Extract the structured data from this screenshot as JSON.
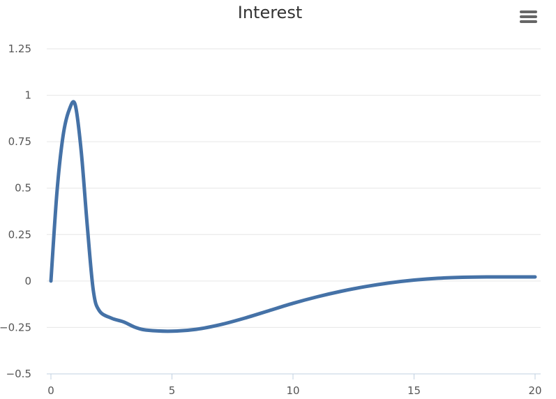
{
  "chart_data": {
    "type": "line",
    "title": "Interest",
    "xlabel": "",
    "ylabel": "",
    "xlim": [
      0,
      20
    ],
    "ylim": [
      -0.5,
      1.25
    ],
    "x_ticks": [
      0,
      5,
      10,
      15,
      20
    ],
    "x_tick_labels": [
      "0",
      "5",
      "10",
      "15",
      "20"
    ],
    "y_ticks": [
      -0.5,
      -0.25,
      0,
      0.25,
      0.5,
      0.75,
      1,
      1.25
    ],
    "y_tick_labels": [
      "−0.5",
      "−0.25",
      "0",
      "0.25",
      "0.5",
      "0.75",
      "1",
      "1.25"
    ],
    "grid": true,
    "legend": "none",
    "series": [
      {
        "color": "#4572a7",
        "x": [
          0,
          0.25,
          0.5,
          0.75,
          1,
          1.25,
          1.5,
          1.75,
          2,
          2.5,
          3,
          3.5,
          4,
          5,
          6,
          7,
          8,
          9,
          10,
          11,
          12,
          13,
          14,
          15,
          16,
          17,
          18,
          19,
          20
        ],
        "y": [
          0,
          0.48,
          0.78,
          0.92,
          0.95,
          0.7,
          0.3,
          -0.05,
          -0.16,
          -0.2,
          -0.22,
          -0.25,
          -0.265,
          -0.27,
          -0.26,
          -0.235,
          -0.2,
          -0.16,
          -0.12,
          -0.085,
          -0.055,
          -0.03,
          -0.01,
          0.005,
          0.015,
          0.02,
          0.022,
          0.022,
          0.022
        ]
      }
    ]
  },
  "menu": {
    "icon": "hamburger-menu-icon"
  }
}
